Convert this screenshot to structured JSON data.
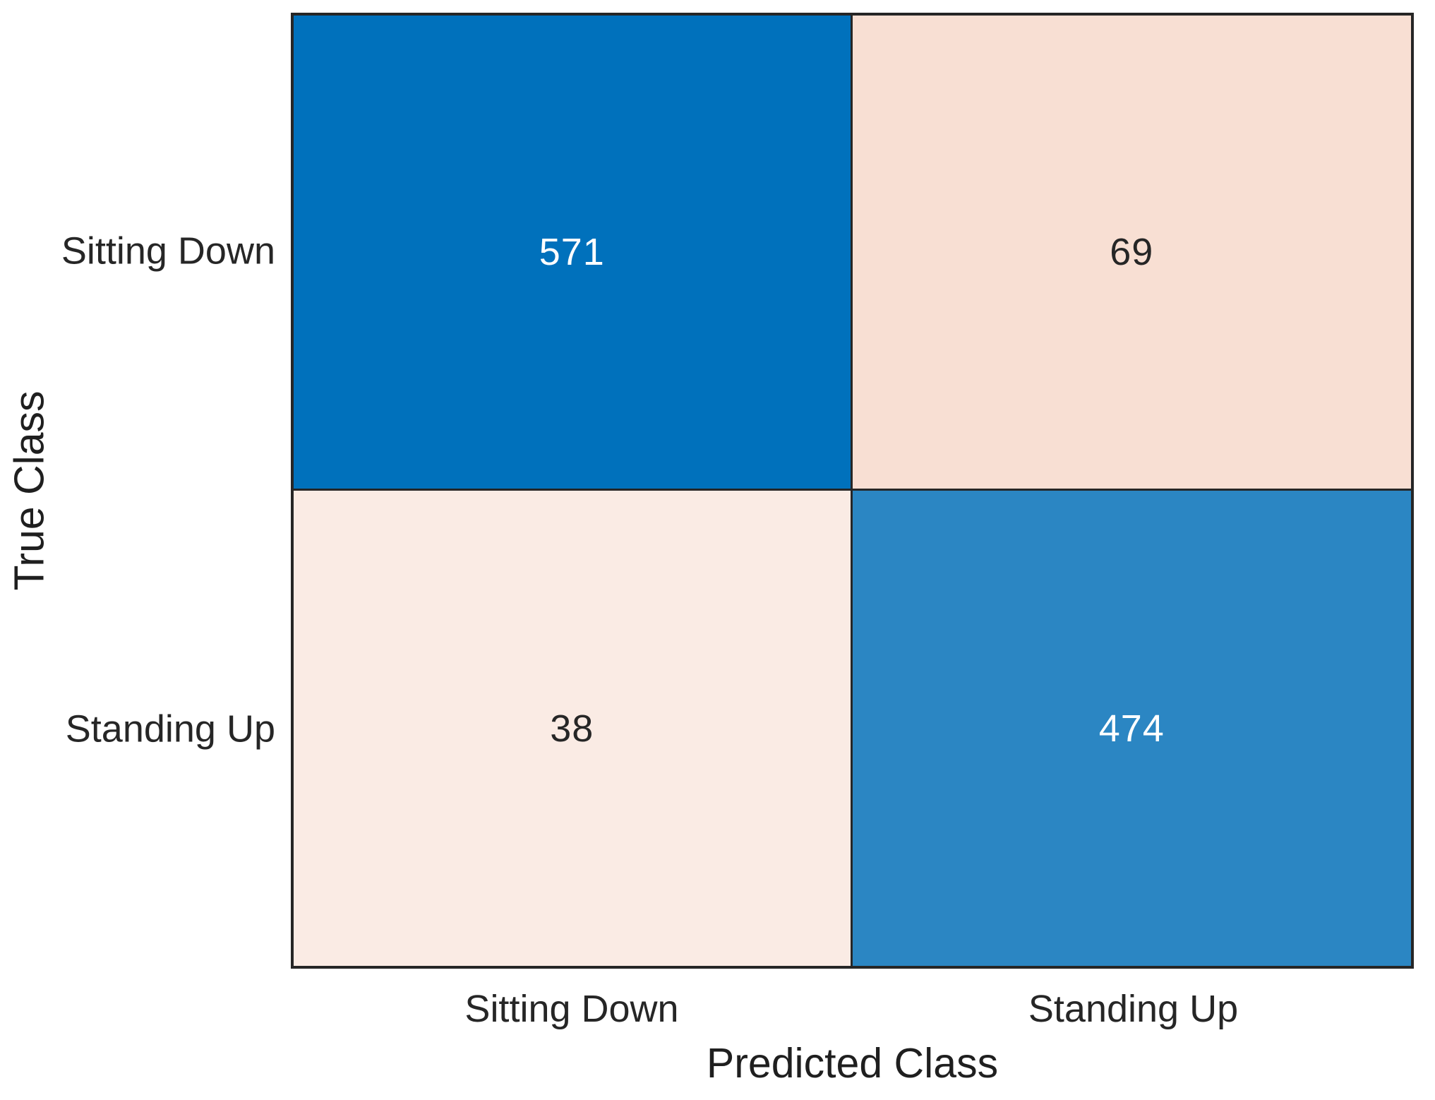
{
  "figure": {
    "background": "#ffffff",
    "kind": "confusion-matrix"
  },
  "chart_data": {
    "type": "heatmap",
    "title": "",
    "xlabel": "Predicted Class",
    "ylabel": "True Class",
    "x_categories": [
      "Sitting Down",
      "Standing Up"
    ],
    "y_categories": [
      "Sitting Down",
      "Standing Up"
    ],
    "matrix": [
      [
        571,
        69
      ],
      [
        38,
        474
      ]
    ],
    "cell_styles": [
      [
        {
          "bg": "#0071BC",
          "fg": "#FFFFFF"
        },
        {
          "bg": "#F8DFD3",
          "fg": "#262626"
        }
      ],
      [
        {
          "bg": "#FAEBE4",
          "fg": "#262626"
        },
        {
          "bg": "#2B86C3",
          "fg": "#FFFFFF"
        }
      ]
    ],
    "axis_color": "#262626",
    "tick_color": "#262626",
    "legend": "none",
    "grid": "cell-borders",
    "layout": {
      "rows": 2,
      "cols": 2
    }
  }
}
